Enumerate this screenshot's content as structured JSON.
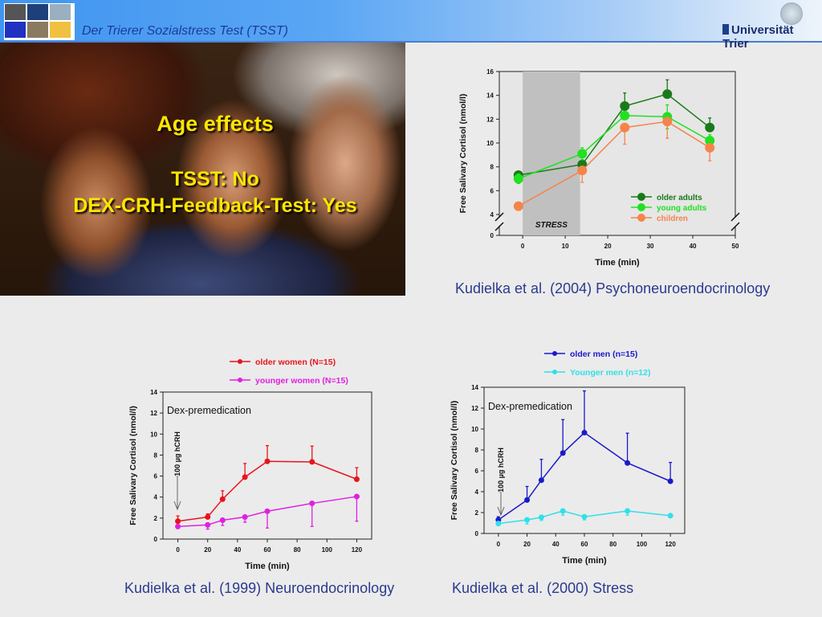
{
  "header": {
    "title": "Der Trierer Sozialstress Test (TSST)",
    "university_logo_text": "Universität Trier"
  },
  "photo": {
    "heading": "Age effects",
    "line1": "TSST: No",
    "line2": "DEX-CRH-Feedback-Test: Yes"
  },
  "citations": {
    "top": "Kudielka et al. (2004) Psychoneuroendocrinology",
    "bottom_left": "Kudielka et al. (1999) Neuroendocrinology",
    "bottom_right": "Kudielka et al. (2000) Stress"
  },
  "chart_data": [
    {
      "type": "line",
      "xlabel": "Time (min)",
      "ylabel": "Free Salivary Cortisol (nmol/l)",
      "xlim": [
        -5.5,
        50
      ],
      "ylim": [
        4,
        16
      ],
      "y_axis_break": true,
      "xticks": [
        0,
        10,
        20,
        30,
        40,
        50
      ],
      "yticks": [
        0,
        4,
        6,
        8,
        10,
        12,
        14,
        16
      ],
      "shaded_region": {
        "x": [
          0,
          13.5
        ],
        "label": "STRESS",
        "color": "#c0c0c0"
      },
      "legend": "bottom-right",
      "series": [
        {
          "name": "older adults",
          "color": "#1a7a1a",
          "x": [
            -1,
            14,
            24,
            34,
            44
          ],
          "y": [
            7.3,
            8.2,
            13.1,
            14.1,
            11.3
          ],
          "error": [
            0.2,
            0.4,
            1.1,
            1.2,
            0.8
          ],
          "error_dir": "up"
        },
        {
          "name": "young adults",
          "color": "#22e022",
          "x": [
            -1,
            14,
            24,
            34,
            44
          ],
          "y": [
            7.0,
            9.1,
            12.3,
            12.2,
            10.2
          ],
          "error": [
            0.4,
            0.5,
            0.3,
            1.0,
            0.5
          ],
          "error_dir": "both"
        },
        {
          "name": "children",
          "color": "#f5844a",
          "x": [
            -1,
            14,
            24,
            34,
            44
          ],
          "y": [
            4.7,
            7.7,
            11.3,
            11.8,
            9.6
          ],
          "error": [
            0.3,
            1.0,
            1.4,
            1.4,
            1.1
          ],
          "error_dir": "down"
        }
      ]
    },
    {
      "type": "line",
      "xlabel": "Time (min)",
      "ylabel": "Free Salivary Cortisol (nmol/l)",
      "xlim": [
        -10,
        130
      ],
      "ylim": [
        0,
        14
      ],
      "xticks": [
        0,
        20,
        40,
        60,
        80,
        100,
        120
      ],
      "yticks": [
        0,
        2,
        4,
        6,
        8,
        10,
        12,
        14
      ],
      "annotation": "Dex-premedication",
      "arrow_label": "100 µg hCRH",
      "legend": "top",
      "series": [
        {
          "name": "older women (N=15)",
          "color": "#e8141c",
          "x": [
            0,
            20,
            30,
            45,
            60,
            90,
            120
          ],
          "y": [
            1.7,
            2.1,
            3.8,
            5.9,
            7.4,
            7.35,
            5.7
          ],
          "error": [
            0.5,
            0.3,
            0.8,
            1.3,
            1.5,
            1.5,
            1.1
          ],
          "error_dir": "up"
        },
        {
          "name": "younger women (N=15)",
          "color": "#e020e0",
          "x": [
            0,
            20,
            30,
            45,
            60,
            90,
            120
          ],
          "y": [
            1.2,
            1.35,
            1.8,
            2.1,
            2.65,
            3.4,
            4.05
          ],
          "error": [
            0.2,
            0.4,
            0.5,
            0.5,
            1.6,
            2.2,
            2.35
          ],
          "error_dir": "down"
        }
      ]
    },
    {
      "type": "line",
      "xlabel": "Time (min)",
      "ylabel": "Free Salivary Cortisol (nmol/l)",
      "xlim": [
        -10,
        130
      ],
      "ylim": [
        0,
        14
      ],
      "xticks": [
        0,
        20,
        40,
        60,
        80,
        100,
        120
      ],
      "yticks": [
        0,
        2,
        4,
        6,
        8,
        10,
        12,
        14
      ],
      "annotation": "Dex-premedication",
      "arrow_label": "100 µg hCRH",
      "legend": "top",
      "series": [
        {
          "name": "older men (n=15)",
          "color": "#1a1acc",
          "x": [
            0,
            20,
            30,
            45,
            60,
            90,
            120
          ],
          "y": [
            1.3,
            3.2,
            5.1,
            7.7,
            9.65,
            6.75,
            5.0
          ],
          "error": [
            0.3,
            1.3,
            2.0,
            3.2,
            4.0,
            2.85,
            1.8
          ],
          "error_dir": "up"
        },
        {
          "name": "Younger men (n=12)",
          "color": "#30e0e8",
          "x": [
            0,
            20,
            30,
            45,
            60,
            90,
            120
          ],
          "y": [
            0.95,
            1.3,
            1.55,
            2.15,
            1.6,
            2.15,
            1.7
          ],
          "error": [
            0.1,
            0.4,
            0.3,
            0.4,
            0.3,
            0.4,
            0.1
          ],
          "error_dir": "down"
        }
      ]
    }
  ]
}
